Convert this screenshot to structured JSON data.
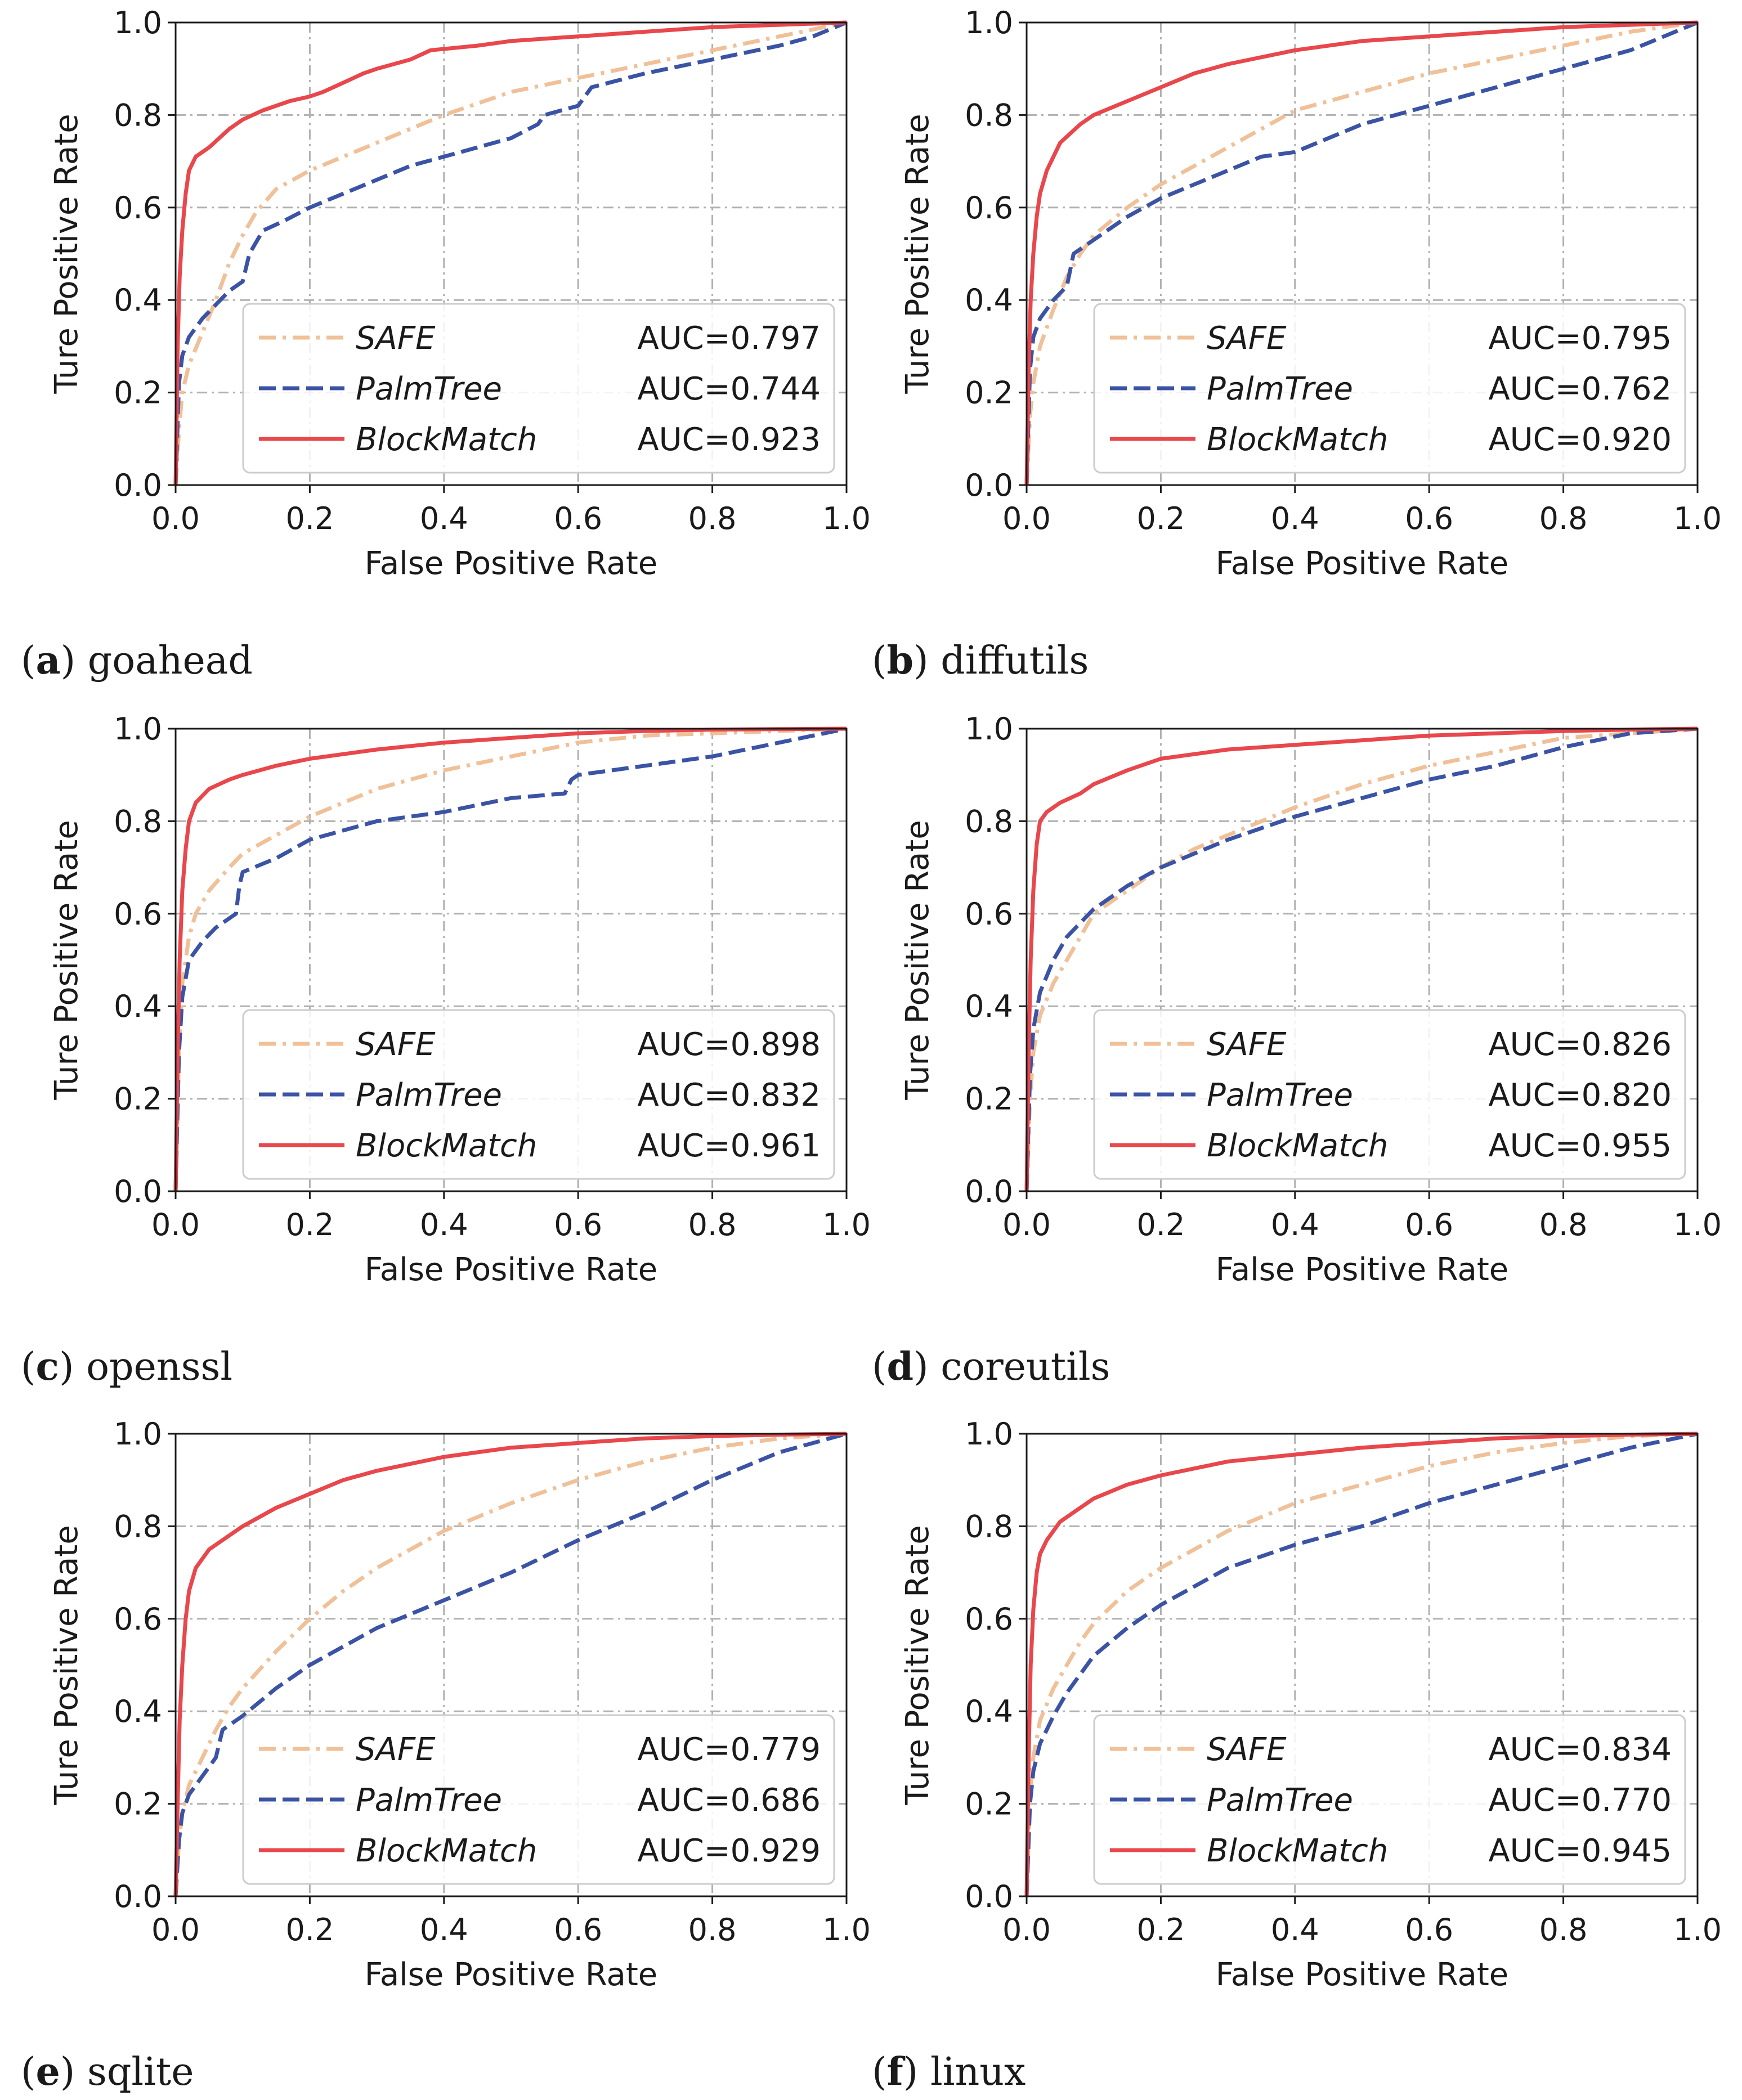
{
  "figure": {
    "series_styles": {
      "SAFE": {
        "color": "#f0c098",
        "dash": "dashdot"
      },
      "PalmTree": {
        "color": "#3b53a4",
        "dash": "dashed"
      },
      "BlockMatch": {
        "color": "#e8474c",
        "dash": "solid"
      }
    }
  },
  "chart_data": [
    {
      "type": "line",
      "panel": "a",
      "caption": "goahead",
      "xlabel": "False Positive Rate",
      "ylabel": "Ture Positive Rate",
      "xlim": [
        0,
        1
      ],
      "ylim": [
        0,
        1
      ],
      "xticks": [
        "0.0",
        "0.2",
        "0.4",
        "0.6",
        "0.8",
        "1.0"
      ],
      "yticks": [
        "0.0",
        "0.2",
        "0.4",
        "0.6",
        "0.8",
        "1.0"
      ],
      "grid": true,
      "legend_position": "bottom-right",
      "series": [
        {
          "name": "SAFE",
          "auc_label": "AUC=0.797",
          "x": [
            0,
            0.005,
            0.01,
            0.02,
            0.04,
            0.06,
            0.08,
            0.1,
            0.12,
            0.15,
            0.2,
            0.25,
            0.3,
            0.4,
            0.5,
            0.6,
            0.7,
            0.8,
            0.9,
            1.0
          ],
          "y": [
            0,
            0.12,
            0.2,
            0.26,
            0.33,
            0.4,
            0.48,
            0.54,
            0.59,
            0.64,
            0.68,
            0.71,
            0.74,
            0.8,
            0.85,
            0.88,
            0.91,
            0.94,
            0.97,
            1.0
          ]
        },
        {
          "name": "PalmTree",
          "auc_label": "AUC=0.744",
          "x": [
            0,
            0.005,
            0.01,
            0.02,
            0.04,
            0.06,
            0.08,
            0.1,
            0.11,
            0.13,
            0.16,
            0.2,
            0.25,
            0.3,
            0.35,
            0.4,
            0.45,
            0.5,
            0.54,
            0.55,
            0.6,
            0.62,
            0.7,
            0.8,
            0.9,
            0.95,
            1.0
          ],
          "y": [
            0,
            0.22,
            0.28,
            0.32,
            0.36,
            0.39,
            0.42,
            0.44,
            0.5,
            0.55,
            0.57,
            0.6,
            0.63,
            0.66,
            0.69,
            0.71,
            0.73,
            0.75,
            0.78,
            0.8,
            0.82,
            0.86,
            0.89,
            0.92,
            0.95,
            0.97,
            1.0
          ]
        },
        {
          "name": "BlockMatch",
          "auc_label": "AUC=0.923",
          "x": [
            0,
            0.003,
            0.006,
            0.01,
            0.015,
            0.02,
            0.03,
            0.05,
            0.08,
            0.1,
            0.13,
            0.17,
            0.2,
            0.22,
            0.25,
            0.28,
            0.3,
            0.35,
            0.38,
            0.45,
            0.5,
            0.6,
            0.7,
            0.8,
            0.9,
            1.0
          ],
          "y": [
            0,
            0.3,
            0.45,
            0.55,
            0.63,
            0.68,
            0.71,
            0.73,
            0.77,
            0.79,
            0.81,
            0.83,
            0.84,
            0.85,
            0.87,
            0.89,
            0.9,
            0.92,
            0.94,
            0.95,
            0.96,
            0.97,
            0.98,
            0.99,
            0.995,
            1.0
          ]
        }
      ]
    },
    {
      "type": "line",
      "panel": "b",
      "caption": "diffutils",
      "xlabel": "False Positive Rate",
      "ylabel": "Ture Positive Rate",
      "xlim": [
        0,
        1
      ],
      "ylim": [
        0,
        1
      ],
      "xticks": [
        "0.0",
        "0.2",
        "0.4",
        "0.6",
        "0.8",
        "1.0"
      ],
      "yticks": [
        "0.0",
        "0.2",
        "0.4",
        "0.6",
        "0.8",
        "1.0"
      ],
      "grid": true,
      "legend_position": "bottom-right",
      "series": [
        {
          "name": "SAFE",
          "auc_label": "AUC=0.795",
          "x": [
            0,
            0.005,
            0.01,
            0.02,
            0.04,
            0.06,
            0.08,
            0.1,
            0.15,
            0.2,
            0.25,
            0.3,
            0.35,
            0.4,
            0.5,
            0.6,
            0.7,
            0.8,
            0.9,
            1.0
          ],
          "y": [
            0,
            0.15,
            0.22,
            0.3,
            0.38,
            0.45,
            0.5,
            0.54,
            0.6,
            0.65,
            0.69,
            0.73,
            0.77,
            0.81,
            0.85,
            0.89,
            0.92,
            0.95,
            0.98,
            1.0
          ]
        },
        {
          "name": "PalmTree",
          "auc_label": "AUC=0.762",
          "x": [
            0,
            0.005,
            0.01,
            0.02,
            0.04,
            0.06,
            0.07,
            0.1,
            0.15,
            0.2,
            0.25,
            0.3,
            0.35,
            0.4,
            0.45,
            0.5,
            0.6,
            0.7,
            0.8,
            0.9,
            0.95,
            1.0
          ],
          "y": [
            0,
            0.25,
            0.32,
            0.36,
            0.4,
            0.43,
            0.5,
            0.53,
            0.58,
            0.62,
            0.65,
            0.68,
            0.71,
            0.72,
            0.75,
            0.78,
            0.82,
            0.86,
            0.9,
            0.94,
            0.97,
            1.0
          ]
        },
        {
          "name": "BlockMatch",
          "auc_label": "AUC=0.920",
          "x": [
            0,
            0.003,
            0.006,
            0.01,
            0.015,
            0.02,
            0.03,
            0.05,
            0.08,
            0.1,
            0.15,
            0.2,
            0.25,
            0.3,
            0.4,
            0.5,
            0.6,
            0.7,
            0.8,
            0.9,
            1.0
          ],
          "y": [
            0,
            0.25,
            0.4,
            0.5,
            0.58,
            0.63,
            0.68,
            0.74,
            0.78,
            0.8,
            0.83,
            0.86,
            0.89,
            0.91,
            0.94,
            0.96,
            0.97,
            0.98,
            0.99,
            0.995,
            1.0
          ]
        }
      ]
    },
    {
      "type": "line",
      "panel": "c",
      "caption": "openssl",
      "xlabel": "False Positive Rate",
      "ylabel": "Ture Positive Rate",
      "xlim": [
        0,
        1
      ],
      "ylim": [
        0,
        1
      ],
      "xticks": [
        "0.0",
        "0.2",
        "0.4",
        "0.6",
        "0.8",
        "1.0"
      ],
      "yticks": [
        "0.0",
        "0.2",
        "0.4",
        "0.6",
        "0.8",
        "1.0"
      ],
      "grid": true,
      "legend_position": "bottom-right",
      "series": [
        {
          "name": "SAFE",
          "auc_label": "AUC=0.898",
          "x": [
            0,
            0.005,
            0.01,
            0.02,
            0.03,
            0.05,
            0.08,
            0.1,
            0.15,
            0.2,
            0.25,
            0.3,
            0.4,
            0.5,
            0.6,
            0.7,
            0.8,
            0.9,
            1.0
          ],
          "y": [
            0,
            0.3,
            0.45,
            0.55,
            0.6,
            0.65,
            0.7,
            0.73,
            0.77,
            0.81,
            0.84,
            0.87,
            0.91,
            0.94,
            0.97,
            0.985,
            0.99,
            0.995,
            1.0
          ]
        },
        {
          "name": "PalmTree",
          "auc_label": "AUC=0.832",
          "x": [
            0,
            0.005,
            0.01,
            0.02,
            0.04,
            0.06,
            0.09,
            0.095,
            0.1,
            0.15,
            0.2,
            0.25,
            0.3,
            0.4,
            0.5,
            0.58,
            0.59,
            0.6,
            0.7,
            0.8,
            0.9,
            1.0
          ],
          "y": [
            0,
            0.3,
            0.42,
            0.5,
            0.54,
            0.57,
            0.6,
            0.66,
            0.69,
            0.72,
            0.76,
            0.78,
            0.8,
            0.82,
            0.85,
            0.86,
            0.89,
            0.9,
            0.92,
            0.94,
            0.97,
            1.0
          ]
        },
        {
          "name": "BlockMatch",
          "auc_label": "AUC=0.961",
          "x": [
            0,
            0.003,
            0.006,
            0.01,
            0.015,
            0.02,
            0.03,
            0.05,
            0.08,
            0.1,
            0.15,
            0.2,
            0.3,
            0.4,
            0.5,
            0.6,
            0.7,
            0.8,
            0.9,
            1.0
          ],
          "y": [
            0,
            0.3,
            0.5,
            0.65,
            0.74,
            0.8,
            0.84,
            0.87,
            0.89,
            0.9,
            0.92,
            0.935,
            0.955,
            0.97,
            0.98,
            0.99,
            0.995,
            0.998,
            0.999,
            1.0
          ]
        }
      ]
    },
    {
      "type": "line",
      "panel": "d",
      "caption": "coreutils",
      "xlabel": "False Positive Rate",
      "ylabel": "Ture Positive Rate",
      "xlim": [
        0,
        1
      ],
      "ylim": [
        0,
        1
      ],
      "xticks": [
        "0.0",
        "0.2",
        "0.4",
        "0.6",
        "0.8",
        "1.0"
      ],
      "yticks": [
        "0.0",
        "0.2",
        "0.4",
        "0.6",
        "0.8",
        "1.0"
      ],
      "grid": true,
      "legend_position": "bottom-right",
      "series": [
        {
          "name": "SAFE",
          "auc_label": "AUC=0.826",
          "x": [
            0,
            0.005,
            0.01,
            0.02,
            0.04,
            0.06,
            0.08,
            0.1,
            0.15,
            0.2,
            0.25,
            0.3,
            0.4,
            0.5,
            0.6,
            0.7,
            0.8,
            0.9,
            1.0
          ],
          "y": [
            0,
            0.2,
            0.3,
            0.38,
            0.45,
            0.5,
            0.55,
            0.6,
            0.65,
            0.7,
            0.74,
            0.77,
            0.83,
            0.88,
            0.92,
            0.95,
            0.98,
            0.99,
            1.0
          ]
        },
        {
          "name": "PalmTree",
          "auc_label": "AUC=0.820",
          "x": [
            0,
            0.005,
            0.01,
            0.02,
            0.04,
            0.06,
            0.08,
            0.1,
            0.15,
            0.2,
            0.25,
            0.3,
            0.4,
            0.5,
            0.6,
            0.7,
            0.8,
            0.9,
            1.0
          ],
          "y": [
            0,
            0.25,
            0.35,
            0.43,
            0.5,
            0.55,
            0.58,
            0.61,
            0.66,
            0.7,
            0.73,
            0.76,
            0.81,
            0.85,
            0.89,
            0.92,
            0.96,
            0.99,
            1.0
          ]
        },
        {
          "name": "BlockMatch",
          "auc_label": "AUC=0.955",
          "x": [
            0,
            0.003,
            0.006,
            0.01,
            0.015,
            0.02,
            0.03,
            0.05,
            0.08,
            0.1,
            0.15,
            0.2,
            0.3,
            0.4,
            0.5,
            0.6,
            0.7,
            0.8,
            0.9,
            1.0
          ],
          "y": [
            0,
            0.3,
            0.5,
            0.65,
            0.75,
            0.8,
            0.82,
            0.84,
            0.86,
            0.88,
            0.91,
            0.935,
            0.955,
            0.965,
            0.975,
            0.985,
            0.99,
            0.995,
            0.998,
            1.0
          ]
        }
      ]
    },
    {
      "type": "line",
      "panel": "e",
      "caption": "sqlite",
      "xlabel": "False Positive Rate",
      "ylabel": "Ture Positive Rate",
      "xlim": [
        0,
        1
      ],
      "ylim": [
        0,
        1
      ],
      "xticks": [
        "0.0",
        "0.2",
        "0.4",
        "0.6",
        "0.8",
        "1.0"
      ],
      "yticks": [
        "0.0",
        "0.2",
        "0.4",
        "0.6",
        "0.8",
        "1.0"
      ],
      "grid": true,
      "legend_position": "bottom-right",
      "series": [
        {
          "name": "SAFE",
          "auc_label": "AUC=0.779",
          "x": [
            0,
            0.005,
            0.01,
            0.02,
            0.04,
            0.06,
            0.08,
            0.1,
            0.15,
            0.2,
            0.25,
            0.3,
            0.4,
            0.5,
            0.6,
            0.7,
            0.8,
            0.9,
            1.0
          ],
          "y": [
            0,
            0.12,
            0.18,
            0.24,
            0.3,
            0.36,
            0.41,
            0.45,
            0.53,
            0.6,
            0.66,
            0.71,
            0.79,
            0.85,
            0.9,
            0.94,
            0.97,
            0.99,
            1.0
          ]
        },
        {
          "name": "PalmTree",
          "auc_label": "AUC=0.686",
          "x": [
            0,
            0.005,
            0.01,
            0.02,
            0.04,
            0.06,
            0.07,
            0.1,
            0.15,
            0.2,
            0.25,
            0.3,
            0.4,
            0.5,
            0.6,
            0.7,
            0.8,
            0.9,
            1.0
          ],
          "y": [
            0,
            0.12,
            0.18,
            0.22,
            0.26,
            0.3,
            0.36,
            0.39,
            0.45,
            0.5,
            0.54,
            0.58,
            0.64,
            0.7,
            0.77,
            0.83,
            0.9,
            0.96,
            1.0
          ]
        },
        {
          "name": "BlockMatch",
          "auc_label": "AUC=0.929",
          "x": [
            0,
            0.003,
            0.006,
            0.01,
            0.015,
            0.02,
            0.03,
            0.05,
            0.08,
            0.1,
            0.15,
            0.2,
            0.25,
            0.3,
            0.4,
            0.5,
            0.6,
            0.7,
            0.8,
            0.9,
            1.0
          ],
          "y": [
            0,
            0.2,
            0.38,
            0.5,
            0.6,
            0.66,
            0.71,
            0.75,
            0.78,
            0.8,
            0.84,
            0.87,
            0.9,
            0.92,
            0.95,
            0.97,
            0.98,
            0.99,
            0.995,
            0.998,
            1.0
          ]
        }
      ]
    },
    {
      "type": "line",
      "panel": "f",
      "caption": "linux",
      "xlabel": "False Positive Rate",
      "ylabel": "Ture Positive Rate",
      "xlim": [
        0,
        1
      ],
      "ylim": [
        0,
        1
      ],
      "xticks": [
        "0.0",
        "0.2",
        "0.4",
        "0.6",
        "0.8",
        "1.0"
      ],
      "yticks": [
        "0.0",
        "0.2",
        "0.4",
        "0.6",
        "0.8",
        "1.0"
      ],
      "grid": true,
      "legend_position": "bottom-right",
      "series": [
        {
          "name": "SAFE",
          "auc_label": "AUC=0.834",
          "x": [
            0,
            0.005,
            0.01,
            0.02,
            0.04,
            0.06,
            0.08,
            0.1,
            0.15,
            0.2,
            0.25,
            0.3,
            0.4,
            0.5,
            0.6,
            0.7,
            0.8,
            0.9,
            1.0
          ],
          "y": [
            0,
            0.22,
            0.3,
            0.38,
            0.45,
            0.5,
            0.55,
            0.59,
            0.66,
            0.71,
            0.75,
            0.79,
            0.85,
            0.89,
            0.93,
            0.96,
            0.98,
            0.995,
            1.0
          ]
        },
        {
          "name": "PalmTree",
          "auc_label": "AUC=0.770",
          "x": [
            0,
            0.005,
            0.01,
            0.02,
            0.04,
            0.06,
            0.08,
            0.1,
            0.15,
            0.2,
            0.25,
            0.3,
            0.4,
            0.5,
            0.6,
            0.7,
            0.8,
            0.9,
            1.0
          ],
          "y": [
            0,
            0.2,
            0.27,
            0.33,
            0.39,
            0.44,
            0.48,
            0.52,
            0.58,
            0.63,
            0.67,
            0.71,
            0.76,
            0.8,
            0.85,
            0.89,
            0.93,
            0.97,
            1.0
          ]
        },
        {
          "name": "BlockMatch",
          "auc_label": "AUC=0.945",
          "x": [
            0,
            0.003,
            0.006,
            0.01,
            0.015,
            0.02,
            0.03,
            0.05,
            0.08,
            0.1,
            0.15,
            0.2,
            0.25,
            0.3,
            0.4,
            0.5,
            0.6,
            0.7,
            0.8,
            0.9,
            1.0
          ],
          "y": [
            0,
            0.3,
            0.5,
            0.62,
            0.7,
            0.74,
            0.77,
            0.81,
            0.84,
            0.86,
            0.89,
            0.91,
            0.925,
            0.94,
            0.955,
            0.97,
            0.98,
            0.99,
            0.995,
            0.998,
            1.0
          ]
        }
      ]
    }
  ]
}
